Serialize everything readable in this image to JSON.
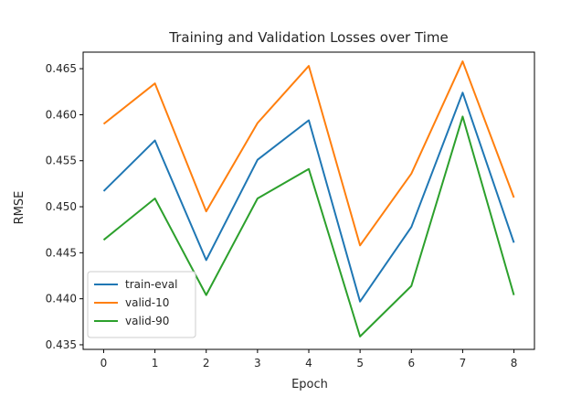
{
  "chart_data": {
    "type": "line",
    "title": "Training and Validation Losses over Time",
    "xlabel": "Epoch",
    "ylabel": "RMSE",
    "x": [
      0,
      1,
      2,
      3,
      4,
      5,
      6,
      7,
      8
    ],
    "xlim": [
      -0.4,
      8.4
    ],
    "ylim": [
      0.4345,
      0.4668
    ],
    "xticks": [
      0,
      1,
      2,
      3,
      4,
      5,
      6,
      7,
      8
    ],
    "yticks": [
      0.435,
      0.44,
      0.445,
      0.45,
      0.455,
      0.46,
      0.465
    ],
    "ytick_labels": [
      "0.435",
      "0.440",
      "0.445",
      "0.450",
      "0.455",
      "0.460",
      "0.465"
    ],
    "grid": false,
    "legend_position": "lower-left",
    "series": [
      {
        "name": "train-eval",
        "color": "#1f77b4",
        "values": [
          0.4517,
          0.4572,
          0.4442,
          0.4551,
          0.4594,
          0.4397,
          0.4478,
          0.4624,
          0.4461
        ]
      },
      {
        "name": "valid-10",
        "color": "#ff7f0e",
        "values": [
          0.459,
          0.4634,
          0.4495,
          0.4591,
          0.4653,
          0.4458,
          0.4536,
          0.4658,
          0.451
        ]
      },
      {
        "name": "valid-90",
        "color": "#2ca02c",
        "values": [
          0.4464,
          0.4509,
          0.4404,
          0.4509,
          0.4541,
          0.4359,
          0.4414,
          0.4598,
          0.4404
        ]
      }
    ]
  }
}
